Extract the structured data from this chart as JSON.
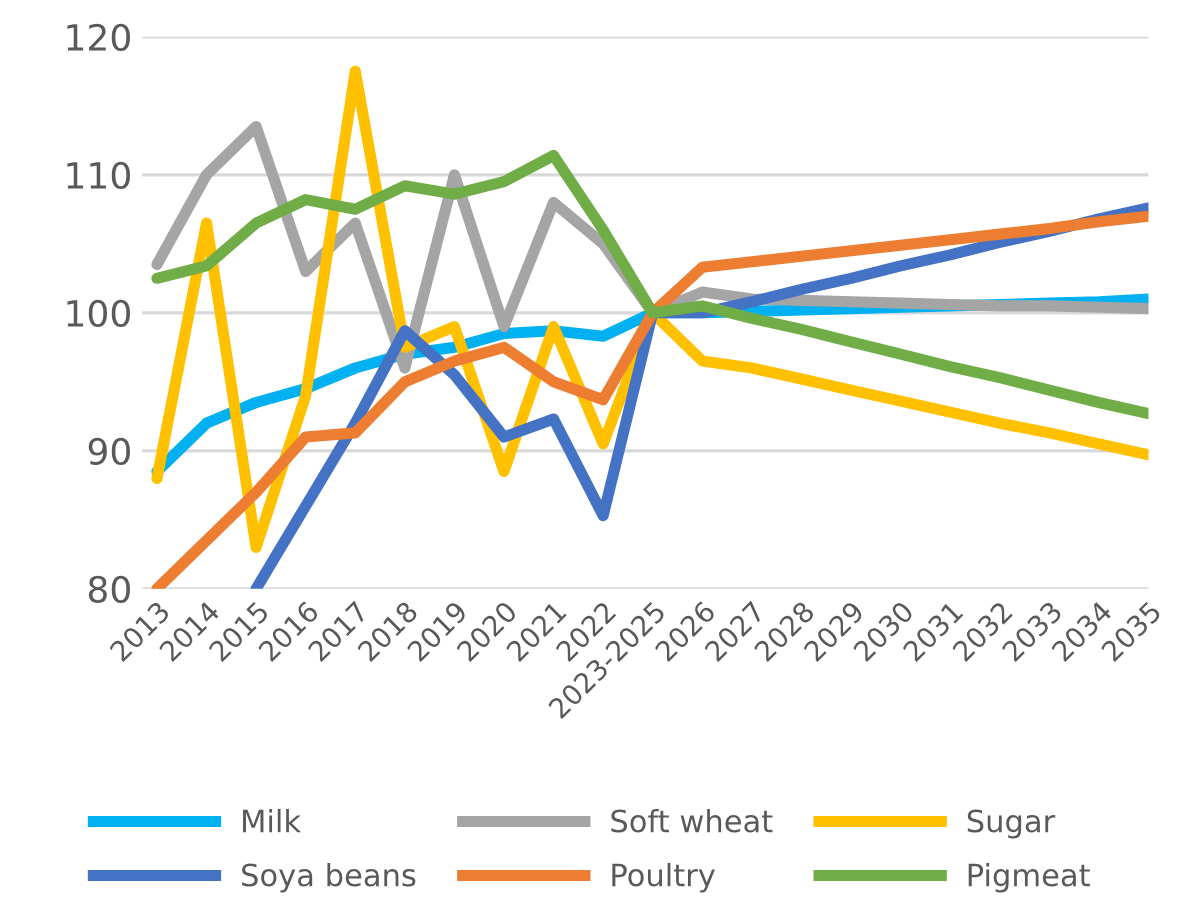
{
  "chart_data": {
    "type": "line",
    "categories": [
      "2013",
      "2014",
      "2015",
      "2016",
      "2017",
      "2018",
      "2019",
      "2020",
      "2021",
      "2022",
      "2023-2025",
      "2026",
      "2027",
      "2028",
      "2029",
      "2030",
      "2031",
      "2032",
      "2033",
      "2034",
      "2035"
    ],
    "series": [
      {
        "name": "Milk",
        "color": "#00b0f0",
        "values": [
          88.5,
          92,
          93.5,
          94.5,
          96,
          97,
          97.5,
          98.5,
          98.7,
          98.3,
          100,
          100,
          100.1,
          100.2,
          100.3,
          100.4,
          100.5,
          100.6,
          100.7,
          100.8,
          101
        ]
      },
      {
        "name": "Soft wheat",
        "color": "#a5a5a5",
        "values": [
          103.5,
          110,
          113.5,
          103,
          106.5,
          96,
          110,
          99,
          108,
          105,
          100,
          101.5,
          101,
          100.9,
          100.8,
          100.7,
          100.6,
          100.5,
          100.5,
          100.4,
          100.3
        ]
      },
      {
        "name": "Sugar",
        "color": "#ffc000",
        "values": [
          88,
          106.5,
          83,
          94,
          117.5,
          97.5,
          99,
          88.5,
          99,
          90.5,
          100,
          96.5,
          96,
          95.2,
          94.4,
          93.6,
          92.8,
          92,
          91.3,
          90.5,
          89.7
        ]
      },
      {
        "name": "Soya beans",
        "color": "#4472c4",
        "values": [
          null,
          null,
          80,
          86,
          92,
          98.7,
          95.5,
          91,
          92.3,
          85.3,
          100,
          100,
          100.8,
          101.7,
          102.5,
          103.4,
          104.2,
          105.1,
          105.9,
          106.8,
          107.6
        ]
      },
      {
        "name": "Poultry",
        "color": "#ed7d31",
        "values": [
          80,
          83.5,
          87,
          91,
          91.3,
          95,
          96.5,
          97.5,
          95,
          93.7,
          100,
          103.3,
          103.7,
          104.1,
          104.5,
          104.9,
          105.3,
          105.7,
          106.1,
          106.6,
          107
        ]
      },
      {
        "name": "Pigmeat",
        "color": "#70ad47",
        "values": [
          102.5,
          103.4,
          106.5,
          108.2,
          107.5,
          109.2,
          108.6,
          109.5,
          111.4,
          106,
          100,
          100.5,
          99.6,
          98.8,
          97.9,
          97,
          96.1,
          95.3,
          94.4,
          93.5,
          92.7
        ]
      }
    ],
    "ylim": [
      80,
      120
    ],
    "yticks": [
      80,
      90,
      100,
      110,
      120
    ],
    "grid": "y",
    "legend": "bottom",
    "marker": "none",
    "line_style": "solid"
  }
}
